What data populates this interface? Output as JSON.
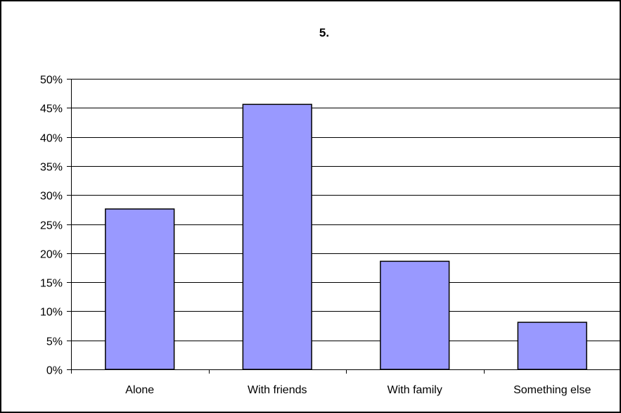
{
  "chart_data": {
    "type": "bar",
    "title": "5.",
    "xlabel": "",
    "ylabel": "",
    "categories": [
      "Alone",
      "With friends",
      "With family",
      "Something else"
    ],
    "values": [
      27.6,
      45.6,
      18.6,
      8.1
    ],
    "ylim": [
      0,
      50
    ],
    "y_ticks": [
      0,
      5,
      10,
      15,
      20,
      25,
      30,
      35,
      40,
      45,
      50
    ],
    "y_tick_labels": [
      "0%",
      "5%",
      "10%",
      "15%",
      "20%",
      "25%",
      "30%",
      "35%",
      "40%",
      "45%",
      "50%"
    ],
    "grid": true,
    "legend": "none",
    "bar_color": "#9999ff",
    "bar_edge_color": "#000000",
    "gridline_color": "#000000"
  }
}
